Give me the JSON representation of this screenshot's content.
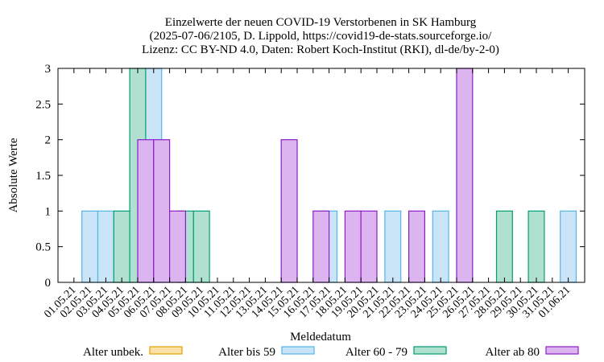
{
  "chart_data": {
    "type": "bar",
    "title_lines": [
      "Einzelwerte der neuen COVID-19 Verstorbenen in SK Hamburg",
      "(2025-07-06/2105, D. Lippold, https://covid19-de-stats.sourceforge.io/",
      "Lizenz: CC BY-ND 4.0, Daten: Robert Koch-Institut (RKI), dl-de/by-2-0)"
    ],
    "xlabel": "Meldedatum",
    "ylabel": "Absolute Werte",
    "ylim": [
      0,
      3
    ],
    "yticks": [
      "0",
      "0.5",
      "1",
      "1.5",
      "2",
      "2.5",
      "3"
    ],
    "grid": false,
    "legend_position": "bottom",
    "categories": [
      "01.05.21",
      "02.05.21",
      "03.05.21",
      "04.05.21",
      "05.05.21",
      "06.05.21",
      "07.05.21",
      "08.05.21",
      "09.05.21",
      "10.05.21",
      "11.05.21",
      "12.05.21",
      "13.05.21",
      "14.05.21",
      "15.05.21",
      "16.05.21",
      "17.05.21",
      "18.05.21",
      "19.05.21",
      "20.05.21",
      "21.05.21",
      "22.05.21",
      "23.05.21",
      "24.05.21",
      "25.05.21",
      "26.05.21",
      "27.05.21",
      "28.05.21",
      "29.05.21",
      "30.05.21",
      "31.05.21",
      "01.06.21"
    ],
    "series": [
      {
        "name": "Alter unbek.",
        "fill": "#fbe0a8",
        "stroke": "#e69f00",
        "offset": -0.5,
        "values": [
          0,
          0,
          0,
          0,
          0,
          0,
          0,
          0,
          0,
          0,
          0,
          0,
          0,
          0,
          0,
          0,
          0,
          0,
          0,
          0,
          0,
          0,
          0,
          0,
          0,
          0,
          0,
          0,
          0,
          0,
          0,
          0
        ]
      },
      {
        "name": "Alter bis 59",
        "fill": "#c8e4f6",
        "stroke": "#56b4e9",
        "offset": -0.5,
        "values": [
          0,
          1,
          1,
          0,
          0,
          3,
          0,
          0,
          0,
          0,
          0,
          0,
          0,
          0,
          0,
          0,
          1,
          0,
          0,
          0,
          1,
          0,
          0,
          1,
          0,
          0,
          0,
          0,
          0,
          0,
          0,
          1
        ]
      },
      {
        "name": "Alter 60 - 79",
        "fill": "#b0e0d0",
        "stroke": "#009e73",
        "offset": -0.5,
        "values": [
          0,
          0,
          0,
          1,
          3,
          0,
          0,
          1,
          1,
          0,
          0,
          0,
          0,
          0,
          0,
          0,
          0,
          0,
          0,
          0,
          0,
          0,
          0,
          0,
          0,
          0,
          0,
          1,
          0,
          1,
          0,
          0
        ]
      },
      {
        "name": "Alter ab 80",
        "fill": "#dcb4f0",
        "stroke": "#8c1fc8",
        "offset": 0,
        "values": [
          0,
          0,
          0,
          0,
          2,
          2,
          1,
          0,
          0,
          0,
          0,
          0,
          0,
          2,
          0,
          1,
          0,
          1,
          1,
          0,
          0,
          1,
          0,
          0,
          3,
          0,
          0,
          0,
          0,
          0,
          0,
          0
        ]
      }
    ]
  }
}
